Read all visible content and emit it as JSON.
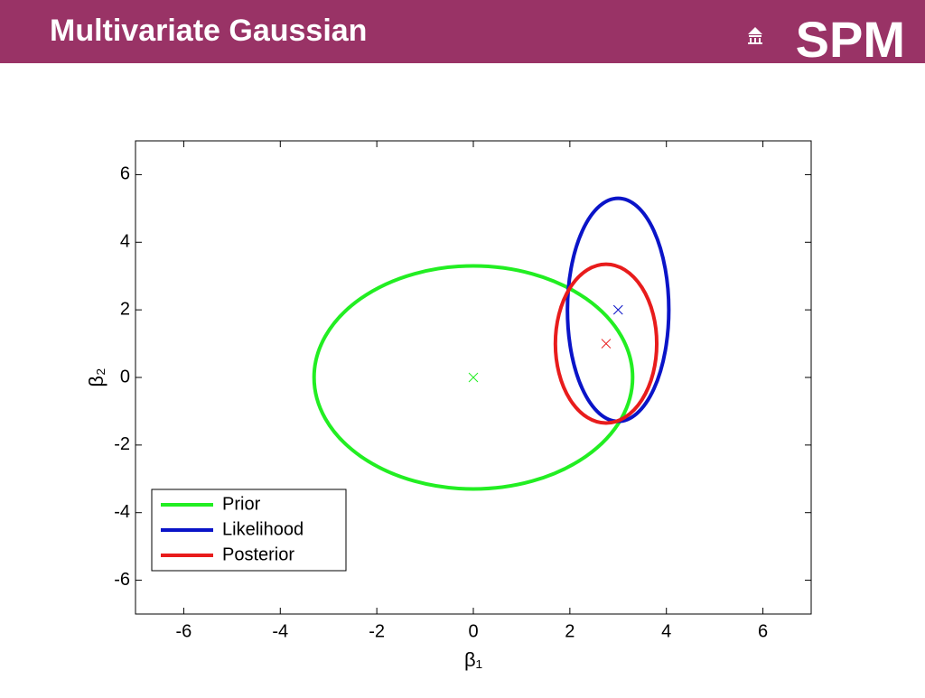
{
  "header": {
    "title": "Multivariate Gaussian",
    "logo": "SPM"
  },
  "chart_data": {
    "type": "ellipse",
    "xlabel": "β₁",
    "ylabel": "β₂",
    "xlim": [
      -7,
      7
    ],
    "ylim": [
      -7,
      7
    ],
    "xticks": [
      -6,
      -4,
      -2,
      0,
      2,
      4,
      6
    ],
    "yticks": [
      -6,
      -4,
      -2,
      0,
      2,
      4,
      6
    ],
    "legend": "lower left",
    "series": [
      {
        "name": "Prior",
        "color": "#22ee22",
        "center": [
          0,
          0
        ],
        "radii": [
          3.3,
          3.3
        ]
      },
      {
        "name": "Likelihood",
        "color": "#0a14c8",
        "center": [
          3,
          2
        ],
        "radii": [
          1.05,
          3.3
        ]
      },
      {
        "name": "Posterior",
        "color": "#e81c1c",
        "center": [
          2.75,
          1
        ],
        "radii": [
          1.05,
          2.35
        ]
      }
    ]
  }
}
